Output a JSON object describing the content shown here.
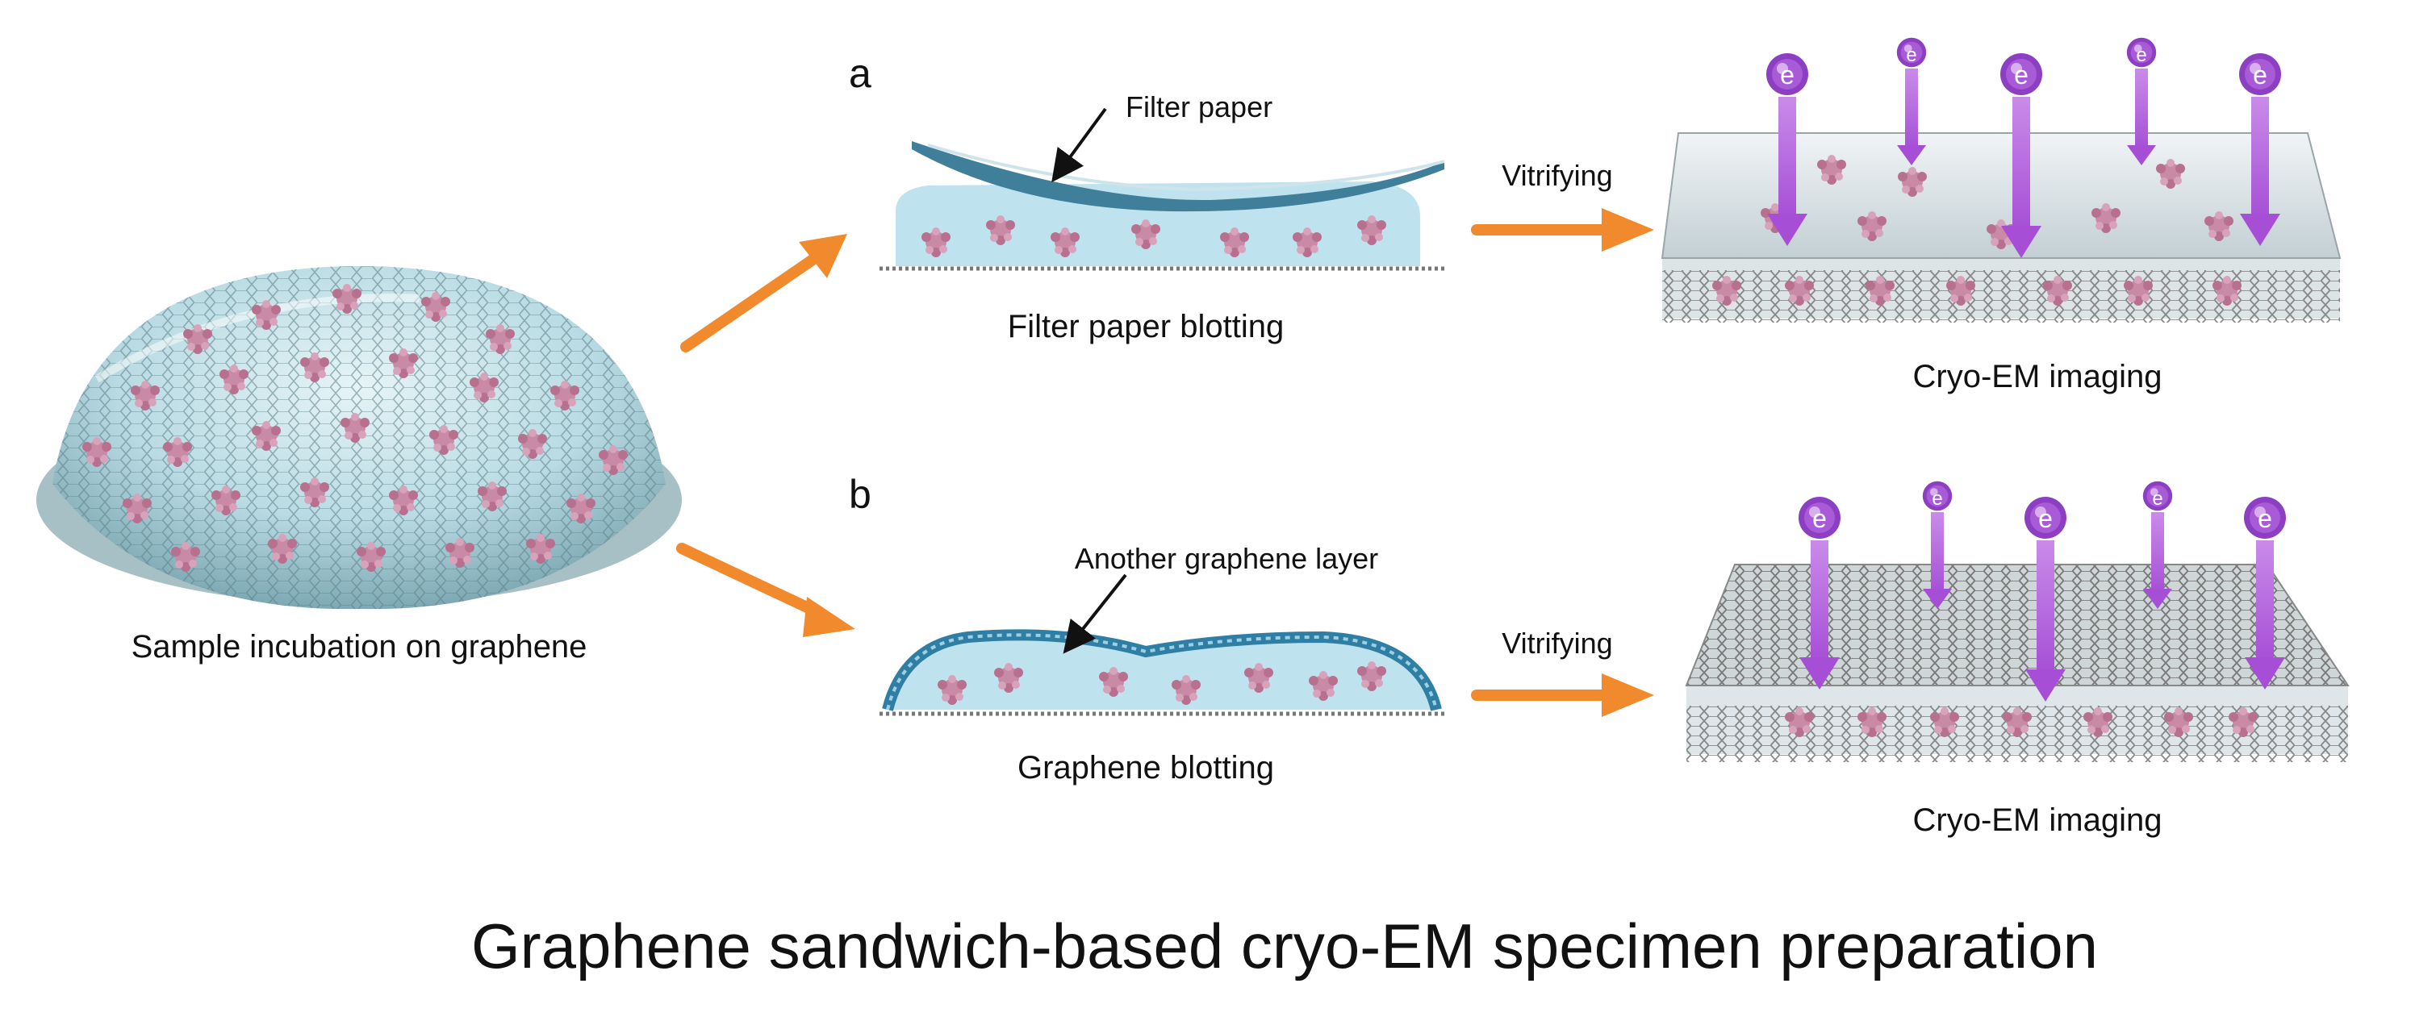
{
  "figure": {
    "title": "Graphene sandwich-based cryo-EM specimen preparation",
    "left": {
      "caption": "Sample incubation on graphene"
    },
    "panel_a": {
      "letter": "a",
      "callout": "Filter paper",
      "caption": "Filter paper blotting",
      "arrow_label": "Vitrifying",
      "result_caption": "Cryo-EM imaging"
    },
    "panel_b": {
      "letter": "b",
      "callout": "Another graphene layer",
      "caption": "Graphene blotting",
      "arrow_label": "Vitrifying",
      "result_caption": "Cryo-EM imaging"
    },
    "electron_symbol": "e",
    "colors": {
      "arrow_orange": "#f08a2c",
      "liquid_blue": "#bfe3ee",
      "filter_paper": "#3f7f9a",
      "particle_pink": "#c98aa6",
      "electron_purple": "#a24fd0",
      "beam_purple": "#c77ee8",
      "graphene_gray": "#8a8a8a"
    }
  }
}
